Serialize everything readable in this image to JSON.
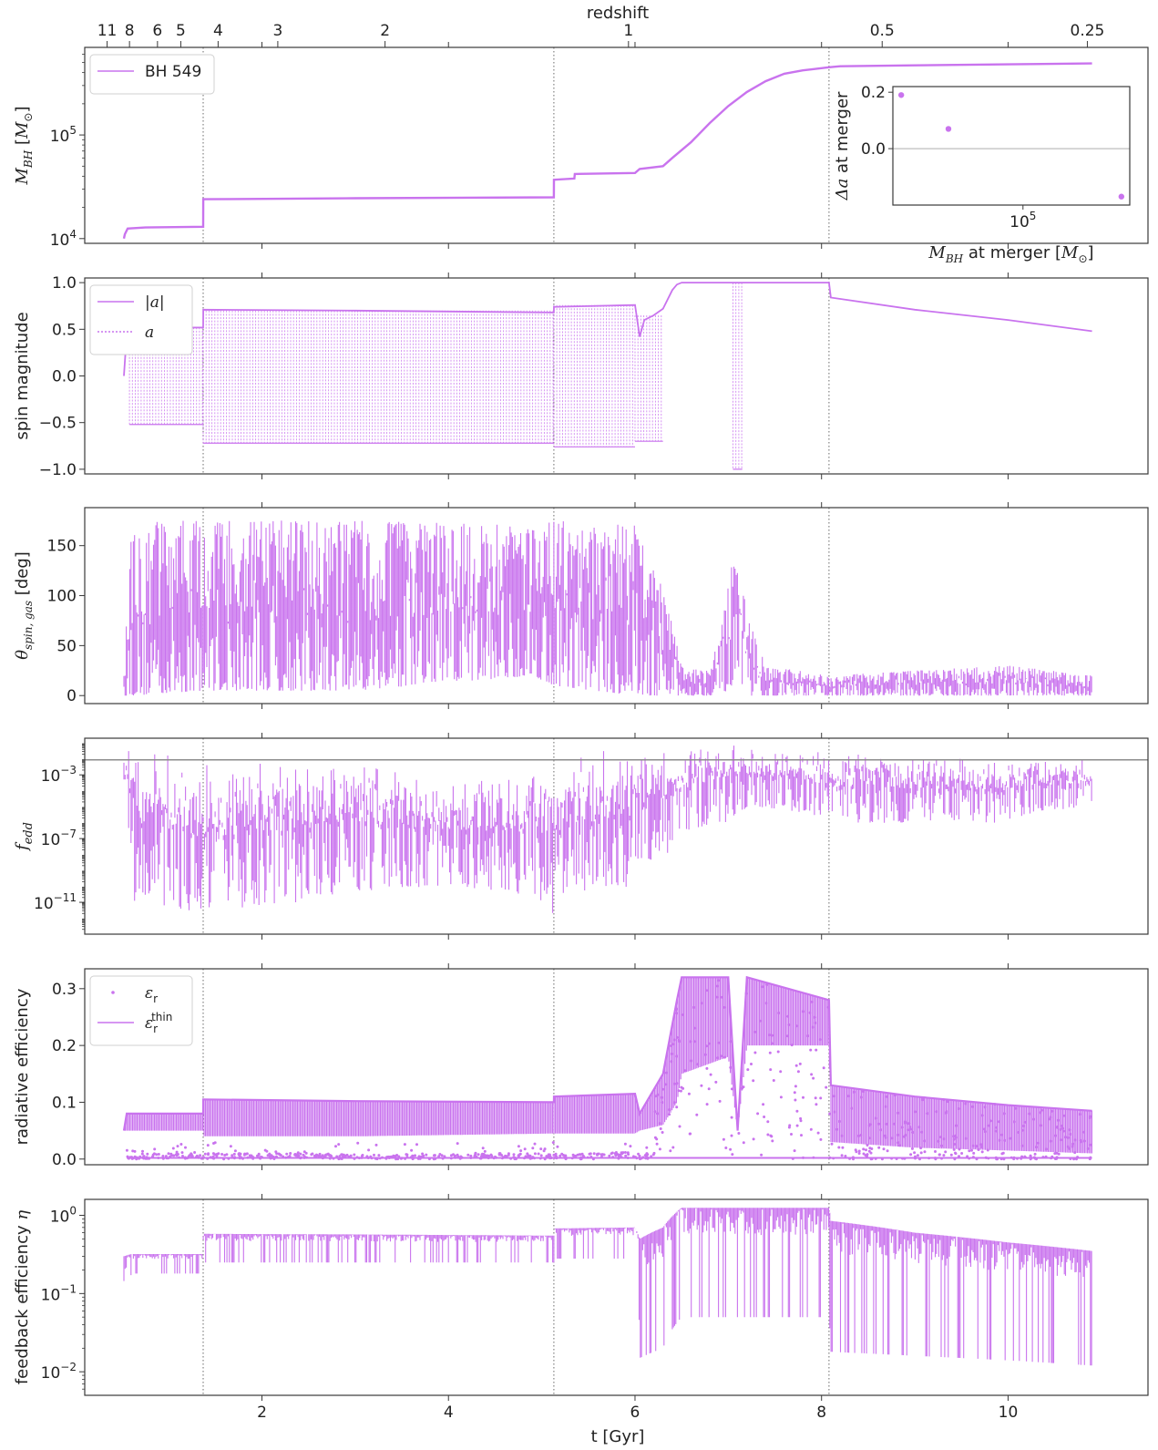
{
  "colors": {
    "series": "#c973ee",
    "frame": "#3a3a3a",
    "reference": "#8c8c8c",
    "inset_zero": "#bdbdbd"
  },
  "top_axis": {
    "label": "redshift",
    "ticks": [
      {
        "label": "11",
        "t": 0.34
      },
      {
        "label": "8",
        "t": 0.58
      },
      {
        "label": "6",
        "t": 0.88
      },
      {
        "label": "5",
        "t": 1.13
      },
      {
        "label": "4",
        "t": 1.53
      },
      {
        "label": "3",
        "t": 2.17
      },
      {
        "label": "2",
        "t": 3.32
      },
      {
        "label": "1",
        "t": 5.93
      },
      {
        "label": "0.5",
        "t": 8.65
      },
      {
        "label": "0.25",
        "t": 10.85
      }
    ]
  },
  "chart_data": {
    "type": "line",
    "x_label": "t [Gyr]",
    "x_ticks": [
      "2",
      "4",
      "6",
      "8",
      "10"
    ],
    "xlim": [
      0.1,
      11.5
    ],
    "merger_times": [
      1.37,
      5.13,
      8.08
    ],
    "legend_location": "upper left",
    "panels": [
      {
        "id": "mass",
        "ylabel": "M_BH [M_⊙]",
        "yscale": "log",
        "ylim": [
          9000,
          700000
        ],
        "yticks": [
          {
            "label": "10^4",
            "v": 10000
          },
          {
            "label": "10^5",
            "v": 100000
          }
        ],
        "legend": [
          {
            "label": "BH 549",
            "style": "solid"
          }
        ],
        "series": [
          {
            "name": "BH 549",
            "x": [
              0.52,
              0.53,
              0.56,
              0.75,
              1.37,
              1.371,
              3.0,
              5.13,
              5.131,
              5.35,
              5.355,
              6.0,
              6.05,
              6.3,
              6.4,
              6.6,
              6.8,
              7.0,
              7.2,
              7.4,
              7.6,
              7.8,
              8.08,
              8.2,
              9.0,
              10.0,
              10.9
            ],
            "y": [
              10000,
              11000,
              12500,
              12800,
              13000,
              24000,
              24500,
              25000,
              37000,
              38000,
              42000,
              43000,
              47000,
              50000,
              60000,
              85000,
              130000,
              190000,
              260000,
              330000,
              390000,
              420000,
              450000,
              460000,
              470000,
              480000,
              490000
            ]
          }
        ],
        "inset": {
          "xlabel": "M_BH at merger [M_⊙]",
          "ylabel": "Δa at merger",
          "xscale": "log",
          "xlim": [
            16000,
            450000
          ],
          "ylim": [
            -0.2,
            0.22
          ],
          "xticks": [
            {
              "label": "10^5",
              "v": 100000
            }
          ],
          "yticks": [
            {
              "label": "0.2",
              "v": 0.2
            },
            {
              "label": "0.0",
              "v": 0.0
            }
          ],
          "points": [
            {
              "x": 18000,
              "y": 0.19
            },
            {
              "x": 35000,
              "y": 0.07
            },
            {
              "x": 400000,
              "y": -0.17
            }
          ]
        }
      },
      {
        "id": "spin",
        "ylabel": "spin magnitude",
        "ylim": [
          -1.05,
          1.05
        ],
        "yticks": [
          "1.0",
          "0.5",
          "0.0",
          "−0.5",
          "−1.0"
        ],
        "legend": [
          {
            "label": "|a|",
            "style": "solid"
          },
          {
            "label": "a",
            "style": "dotted"
          }
        ],
        "series": [
          {
            "name": "|a|",
            "x": [
              0.52,
              0.55,
              0.6,
              1.37,
              1.371,
              3.0,
              5.13,
              5.131,
              6.0,
              6.05,
              6.1,
              6.2,
              6.3,
              6.4,
              6.45,
              6.5,
              8.08,
              8.1,
              9.0,
              10.0,
              10.9
            ],
            "y": [
              0.0,
              0.45,
              0.51,
              0.52,
              0.71,
              0.7,
              0.68,
              0.74,
              0.76,
              0.42,
              0.6,
              0.65,
              0.72,
              0.92,
              0.98,
              1.0,
              1.0,
              0.84,
              0.71,
              0.6,
              0.48
            ]
          },
          {
            "name": "a",
            "segments": [
              [
                0.58,
                1.37,
                -0.52,
                0.52
              ],
              [
                1.37,
                5.13,
                -0.72,
                0.7
              ],
              [
                5.13,
                6.0,
                -0.76,
                0.76
              ],
              [
                6.0,
                6.3,
                -0.7,
                0.65
              ],
              [
                7.05,
                7.15,
                -1.0,
                1.0
              ]
            ]
          }
        ]
      },
      {
        "id": "theta",
        "ylabel": "θ_spin, gas [deg]",
        "ylim": [
          -8,
          188
        ],
        "yticks": [
          "150",
          "100",
          "50",
          "0"
        ],
        "envelope": {
          "x": [
            0.52,
            0.6,
            1.37,
            3.0,
            4.9,
            5.13,
            6.0,
            6.3,
            6.5,
            6.8,
            7.0,
            7.1,
            7.2,
            7.4,
            8.08,
            9.0,
            10.0,
            10.9
          ],
          "max": [
            20,
            175,
            175,
            175,
            170,
            175,
            170,
            110,
            30,
            25,
            120,
            145,
            80,
            30,
            20,
            25,
            30,
            20
          ],
          "min": [
            0,
            0,
            5,
            5,
            20,
            10,
            0,
            0,
            0,
            0,
            5,
            15,
            0,
            0,
            0,
            0,
            0,
            0
          ]
        }
      },
      {
        "id": "fedd",
        "ylabel": "f_edd",
        "yscale": "log",
        "ylim": [
          1e-13,
          0.2
        ],
        "yticks": [
          {
            "label": "10^-3",
            "v": 0.001
          },
          {
            "label": "10^-7",
            "v": 1e-07
          },
          {
            "label": "10^-11",
            "v": 1e-11
          }
        ],
        "reference_line": 0.0088,
        "envelope": {
          "x": [
            0.52,
            0.6,
            1.37,
            2.4,
            4.0,
            5.13,
            6.0,
            6.4,
            7.0,
            7.3,
            8.08,
            9.0,
            10.0,
            10.9
          ],
          "max": [
            0.1,
            0.05,
            0.005,
            0.01,
            0.0005,
            0.003,
            0.05,
            0.1,
            0.1,
            0.1,
            0.03,
            0.02,
            0.01,
            0.01
          ],
          "min": [
            1e-06,
            1e-11,
            1e-12,
            1e-11,
            1e-10,
            1e-12,
            1e-10,
            1e-08,
            1e-06,
            1e-05,
            1e-06,
            1e-06,
            1e-06,
            1e-05
          ]
        }
      },
      {
        "id": "rad_eff",
        "ylabel": "radiative efficiency",
        "ylim": [
          -0.01,
          0.335
        ],
        "yticks": [
          "0.3",
          "0.2",
          "0.1",
          "0.0"
        ],
        "legend": [
          {
            "label": "ε_r",
            "style": "marker"
          },
          {
            "label": "ε_r^thin",
            "style": "solid"
          }
        ],
        "series": [
          {
            "name": "ε_r^thin",
            "x": [
              0.52,
              0.55,
              1.37,
              1.371,
              3.0,
              5.13,
              5.131,
              6.0,
              6.05,
              6.3,
              6.45,
              6.5,
              7.0,
              7.1,
              7.2,
              8.08,
              8.1,
              9.0,
              10.0,
              10.9
            ],
            "y": [
              0.05,
              0.08,
              0.08,
              0.105,
              0.102,
              0.1,
              0.11,
              0.115,
              0.08,
              0.15,
              0.28,
              0.32,
              0.32,
              0.05,
              0.32,
              0.28,
              0.13,
              0.11,
              0.095,
              0.085
            ],
            "lower": [
              0.05,
              0.05,
              0.05,
              0.04,
              0.04,
              0.045,
              0.045,
              0.045,
              0.05,
              0.06,
              0.1,
              0.15,
              0.18,
              0.05,
              0.2,
              0.2,
              0.03,
              0.02,
              0.015,
              0.01
            ]
          }
        ]
      },
      {
        "id": "feedback",
        "ylabel": "feedback efficiency η",
        "yscale": "log",
        "ylim": [
          0.005,
          1.6
        ],
        "yticks": [
          {
            "label": "10^0",
            "v": 1
          },
          {
            "label": "10^-1",
            "v": 0.1
          },
          {
            "label": "10^-2",
            "v": 0.01
          }
        ],
        "envelope": {
          "x": [
            0.52,
            0.6,
            1.37,
            1.371,
            3.0,
            5.13,
            5.131,
            6.0,
            6.05,
            6.3,
            6.5,
            7.0,
            8.08,
            8.1,
            9.0,
            10.0,
            10.9
          ],
          "max": [
            0.3,
            0.32,
            0.32,
            0.58,
            0.57,
            0.55,
            0.68,
            0.7,
            0.5,
            0.7,
            1.25,
            1.25,
            1.25,
            0.85,
            0.6,
            0.45,
            0.35
          ],
          "min": [
            0.012,
            0.18,
            0.18,
            0.25,
            0.25,
            0.25,
            0.28,
            0.28,
            0.015,
            0.02,
            0.05,
            0.05,
            0.05,
            0.018,
            0.016,
            0.014,
            0.012
          ]
        }
      }
    ]
  }
}
